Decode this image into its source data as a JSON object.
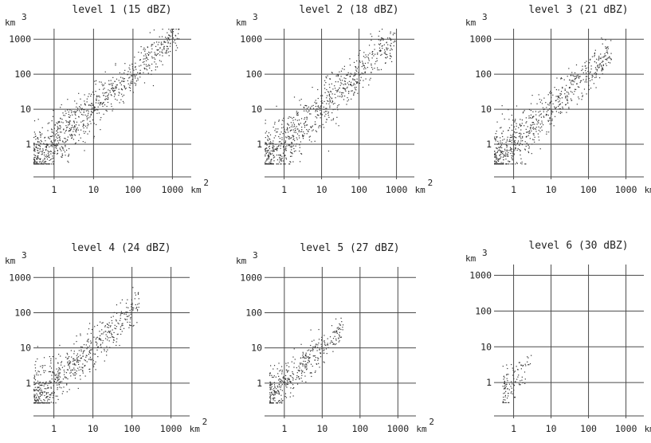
{
  "chart_data": [
    {
      "type": "scatter",
      "title": "level 1 (15 dBZ)",
      "x_ticks": [
        "1",
        "10",
        "100",
        "1000"
      ],
      "y_ticks": [
        "1000",
        "100",
        "10",
        "1"
      ],
      "x_unit": "km",
      "x_unit_exp": "2",
      "y_unit": "km",
      "y_unit_exp": "3",
      "x_scale": "log",
      "y_scale": "log",
      "xlim": [
        0.3,
        3000
      ],
      "ylim": [
        0.1,
        2000
      ],
      "grid": true,
      "x_range": [
        0.3,
        1500
      ],
      "series": [
        {
          "density": 1.0,
          "spread": 0.35
        }
      ]
    },
    {
      "type": "scatter",
      "title": "level 2 (18 dBZ)",
      "x_ticks": [
        "1",
        "10",
        "100",
        "1000"
      ],
      "y_ticks": [
        "1000",
        "100",
        "10",
        "1"
      ],
      "x_unit": "km",
      "x_unit_exp": "2",
      "y_unit": "km",
      "y_unit_exp": "3",
      "x_scale": "log",
      "y_scale": "log",
      "xlim": [
        0.3,
        3000
      ],
      "ylim": [
        0.1,
        2000
      ],
      "grid": true,
      "x_range": [
        0.3,
        900
      ],
      "series": [
        {
          "density": 0.9,
          "spread": 0.35
        }
      ]
    },
    {
      "type": "scatter",
      "title": "level 3 (21 dBZ)",
      "x_ticks": [
        "1",
        "10",
        "100",
        "1000"
      ],
      "y_ticks": [
        "1000",
        "100",
        "10",
        "1"
      ],
      "x_unit": "km",
      "x_unit_exp": "2",
      "y_unit": "km",
      "y_unit_exp": "3",
      "x_scale": "log",
      "y_scale": "log",
      "xlim": [
        0.3,
        3000
      ],
      "ylim": [
        0.1,
        2000
      ],
      "grid": true,
      "x_range": [
        0.3,
        400
      ],
      "series": [
        {
          "density": 0.8,
          "spread": 0.35
        }
      ]
    },
    {
      "type": "scatter",
      "title": "level 4 (24 dBZ)",
      "x_ticks": [
        "1",
        "10",
        "100",
        "1000"
      ],
      "y_ticks": [
        "1000",
        "100",
        "10",
        "1"
      ],
      "x_unit": "km",
      "x_unit_exp": "2",
      "y_unit": "km",
      "y_unit_exp": "3",
      "x_scale": "log",
      "y_scale": "log",
      "xlim": [
        0.3,
        3000
      ],
      "ylim": [
        0.1,
        2000
      ],
      "grid": true,
      "x_range": [
        0.3,
        150
      ],
      "series": [
        {
          "density": 0.7,
          "spread": 0.35
        }
      ]
    },
    {
      "type": "scatter",
      "title": "level 5 (27 dBZ)",
      "x_ticks": [
        "1",
        "10",
        "100",
        "1000"
      ],
      "y_ticks": [
        "1000",
        "100",
        "10",
        "1"
      ],
      "x_unit": "km",
      "x_unit_exp": "2",
      "y_unit": "km",
      "y_unit_exp": "3",
      "x_scale": "log",
      "y_scale": "log",
      "xlim": [
        0.3,
        3000
      ],
      "ylim": [
        0.1,
        2000
      ],
      "grid": true,
      "x_range": [
        0.4,
        35
      ],
      "series": [
        {
          "density": 0.45,
          "spread": 0.3
        }
      ]
    },
    {
      "type": "scatter",
      "title": "level 6 (30 dBZ)",
      "x_ticks": [
        "1",
        "10",
        "100",
        "1000"
      ],
      "y_ticks": [
        "1000",
        "100",
        "10",
        "1"
      ],
      "x_unit": "km",
      "x_unit_exp": "2",
      "y_unit": "km",
      "y_unit_exp": "3",
      "x_scale": "log",
      "y_scale": "log",
      "xlim": [
        0.3,
        3000
      ],
      "ylim": [
        0.1,
        2000
      ],
      "grid": true,
      "x_range": [
        0.5,
        3
      ],
      "series": [
        {
          "density": 0.12,
          "spread": 0.3
        }
      ]
    }
  ]
}
